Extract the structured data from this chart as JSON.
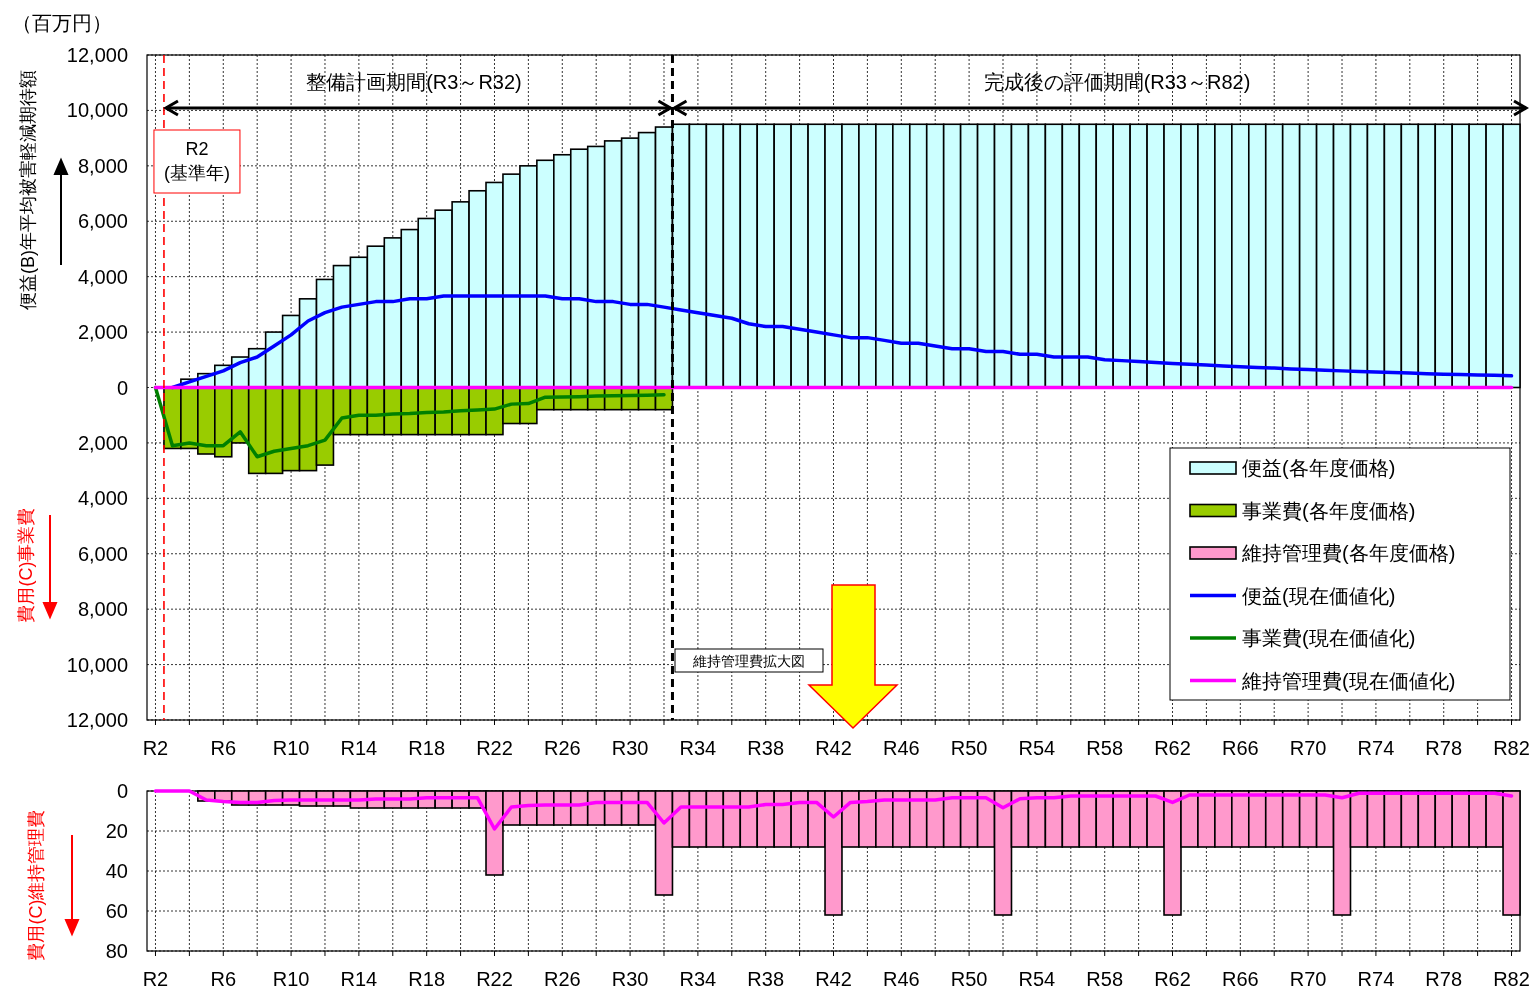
{
  "chart_data": [
    {
      "type": "bar",
      "ylabel": "便益(B)年平均被害軽減期待額",
      "annotations": [
        "（百万円）",
        "費用(C)事業費",
        "維持管理費拡大図",
        "整備計画期間(R3～R32)",
        "完成後の評価期間(R33～R82)"
      ],
      "categories": [
        "R2",
        null,
        null,
        null,
        "R6",
        null,
        null,
        null,
        "R10",
        null,
        null,
        null,
        "R14",
        null,
        null,
        null,
        "R18",
        null,
        null,
        null,
        "R22",
        null,
        null,
        null,
        "R26",
        null,
        null,
        null,
        "R30",
        null,
        null,
        null,
        "R34",
        null,
        null,
        null,
        "R38",
        null,
        null,
        null,
        "R42",
        null,
        null,
        null,
        "R46",
        null,
        null,
        null,
        "R50",
        null,
        null,
        null,
        "R54",
        null,
        null,
        null,
        "R58",
        null,
        null,
        null,
        "R62",
        null,
        null,
        null,
        "R66",
        null,
        null,
        null,
        "R70",
        null,
        null,
        null,
        "R74",
        null,
        null,
        null,
        "R78",
        null,
        null,
        null,
        "R82"
      ],
      "ylim": [
        -12000,
        12000
      ],
      "yticks": [
        {
          "value": -12000,
          "label": "12,000"
        },
        {
          "value": -10000,
          "label": "10,000"
        },
        {
          "value": -8000,
          "label": "8,000"
        },
        {
          "value": -6000,
          "label": "6,000"
        },
        {
          "value": -4000,
          "label": "4,000"
        },
        {
          "value": -2000,
          "label": "2,000"
        },
        0,
        {
          "value": 2000,
          "label": "2,000"
        },
        {
          "value": 4000,
          "label": "4,000"
        },
        {
          "value": 6000,
          "label": "6,000"
        },
        {
          "value": 8000,
          "label": "8,000"
        },
        {
          "value": 10000,
          "label": "10,000"
        },
        {
          "value": 12000,
          "label": "12,000"
        }
      ],
      "grid": true,
      "legend": "bottom right",
      "ref_lines": [
        {
          "axis": "x",
          "value": "R2",
          "label": "R2\n(基準年)",
          "color": "#ff0000",
          "line_style": "dashed"
        },
        {
          "axis": "x",
          "color": "#000000",
          "line_style": "dashed"
        }
      ],
      "series": [
        {
          "name": "便益(各年度価格)",
          "color": "#ccffff",
          "values": [
            null,
            null,
            300,
            500,
            800,
            1100,
            1400,
            2000,
            2600,
            3200,
            3900,
            4400,
            4700,
            5100,
            5400,
            5700,
            6100,
            6400,
            6700,
            7100,
            7400,
            7700,
            8000,
            8200,
            8400,
            8600,
            8700,
            8900,
            9000,
            9200,
            9400,
            9500,
            9500,
            9500,
            9500,
            9500,
            9500,
            9500,
            9500,
            9500,
            9500,
            9500,
            9500,
            9500,
            9500,
            9500,
            9500,
            9500,
            9500,
            9500,
            9500,
            9500,
            9500,
            9500,
            9500,
            9500,
            9500,
            9500,
            9500,
            9500,
            9500,
            9500,
            9500,
            9500,
            9500,
            9500,
            9500,
            9500,
            9500,
            9500,
            9500,
            9500,
            9500,
            9500,
            9500,
            9500,
            9500,
            9500,
            9500,
            9500,
            9500
          ]
        },
        {
          "name": "事業費(各年度価格)",
          "color": "#99cc00",
          "values": [
            null,
            -2200,
            -2200,
            -2400,
            -2500,
            -2000,
            -3100,
            -3100,
            -3000,
            -3000,
            -2800,
            -1700,
            -1700,
            -1700,
            -1700,
            -1700,
            -1700,
            -1700,
            -1700,
            -1700,
            -1700,
            -1300,
            -1300,
            -800,
            -800,
            -800,
            -800,
            -800,
            -800,
            -800,
            -800,
            null,
            null,
            null,
            null,
            null,
            null,
            null,
            null,
            null,
            null,
            null,
            null,
            null,
            null,
            null,
            null,
            null,
            null,
            null,
            null,
            null,
            null,
            null,
            null,
            null,
            null,
            null,
            null,
            null,
            null,
            null,
            null,
            null,
            null,
            null,
            null,
            null,
            null,
            null,
            null,
            null,
            null,
            null,
            null,
            null,
            null,
            null,
            null,
            null,
            null
          ]
        },
        {
          "name": "維持管理費(各年度価格)",
          "color": "#ff99cc",
          "values": [
            null,
            null,
            null,
            null,
            null,
            null,
            null,
            null,
            null,
            null,
            null,
            null,
            null,
            null,
            null,
            null,
            null,
            null,
            null,
            null,
            null,
            null,
            null,
            null,
            null,
            null,
            null,
            null,
            null,
            null,
            null,
            null,
            null,
            null,
            null,
            null,
            null,
            null,
            null,
            null,
            null,
            null,
            null,
            null,
            null,
            null,
            null,
            null,
            null,
            null,
            null,
            null,
            null,
            null,
            null,
            null,
            null,
            null,
            null,
            null,
            null,
            null,
            null,
            null,
            null,
            null,
            null,
            null,
            null,
            null,
            null,
            null,
            null,
            null,
            null,
            null,
            null,
            null,
            null,
            null,
            null
          ]
        },
        {
          "name": "便益(現在価値化)",
          "type": "line",
          "color": "#0000ff",
          "values": [
            null,
            0,
            200,
            400,
            600,
            900,
            1100,
            1500,
            1900,
            2400,
            2700,
            2900,
            3000,
            3100,
            3100,
            3200,
            3200,
            3300,
            3300,
            3300,
            3300,
            3300,
            3300,
            3300,
            3200,
            3200,
            3100,
            3100,
            3000,
            3000,
            2900,
            2800,
            2700,
            2600,
            2500,
            2300,
            2200,
            2200,
            2100,
            2000,
            1900,
            1800,
            1800,
            1700,
            1600,
            1600,
            1500,
            1400,
            1400,
            1300,
            1300,
            1200,
            1200,
            1100,
            1100,
            1100,
            1000,
            970,
            940,
            900,
            870,
            840,
            810,
            780,
            750,
            720,
            700,
            670,
            650,
            620,
            600,
            580,
            560,
            540,
            520,
            500,
            480,
            470,
            450,
            440,
            420
          ]
        },
        {
          "name": "事業費(現在価値化)",
          "type": "line",
          "color": "#008000",
          "values": [
            0,
            -2100,
            -2000,
            -2100,
            -2100,
            -1600,
            -2500,
            -2300,
            -2200,
            -2100,
            -1900,
            -1100,
            -1000,
            -1000,
            -960,
            -940,
            -900,
            -880,
            -840,
            -810,
            -780,
            -600,
            -580,
            -350,
            -340,
            -330,
            -310,
            -300,
            -290,
            -280,
            -260,
            null,
            null,
            null,
            null,
            null,
            null,
            null,
            null,
            null,
            null,
            null,
            null,
            null,
            null,
            null,
            null,
            null,
            null,
            null,
            null,
            null,
            null,
            null,
            null,
            null,
            null,
            null,
            null,
            null,
            null,
            null,
            null,
            null,
            null,
            null,
            null,
            null,
            null,
            null,
            null,
            null,
            null,
            null,
            null,
            null,
            null,
            null,
            null,
            null,
            null
          ]
        },
        {
          "name": "維持管理費(現在価値化)",
          "type": "line",
          "color": "#ff00ff",
          "values": [
            0,
            0,
            0,
            0,
            0,
            0,
            0,
            0,
            0,
            0,
            0,
            0,
            0,
            0,
            0,
            0,
            0,
            0,
            0,
            0,
            0,
            0,
            0,
            0,
            0,
            0,
            0,
            0,
            0,
            0,
            0,
            0,
            0,
            0,
            0,
            0,
            0,
            0,
            0,
            0,
            0,
            0,
            0,
            0,
            0,
            0,
            0,
            0,
            0,
            0,
            0,
            0,
            0,
            0,
            0,
            0,
            0,
            0,
            0,
            0,
            0,
            0,
            0,
            0,
            0,
            0,
            0,
            0,
            0,
            0,
            0,
            0,
            0,
            0,
            0,
            0,
            0,
            0,
            0,
            0,
            0
          ]
        }
      ]
    },
    {
      "type": "bar",
      "ylabel": "費用(C)維持管理費",
      "categories": [
        "R2",
        null,
        null,
        null,
        "R6",
        null,
        null,
        null,
        "R10",
        null,
        null,
        null,
        "R14",
        null,
        null,
        null,
        "R18",
        null,
        null,
        null,
        "R22",
        null,
        null,
        null,
        "R26",
        null,
        null,
        null,
        "R30",
        null,
        null,
        null,
        "R34",
        null,
        null,
        null,
        "R38",
        null,
        null,
        null,
        "R42",
        null,
        null,
        null,
        "R46",
        null,
        null,
        null,
        "R50",
        null,
        null,
        null,
        "R54",
        null,
        null,
        null,
        "R58",
        null,
        null,
        null,
        "R62",
        null,
        null,
        null,
        "R66",
        null,
        null,
        null,
        "R70",
        null,
        null,
        null,
        "R74",
        null,
        null,
        null,
        "R78",
        null,
        null,
        null,
        "R82"
      ],
      "ylim": [
        80,
        0
      ],
      "yticks": [
        0,
        20,
        40,
        60,
        80
      ],
      "grid": true,
      "series": [
        {
          "color": "#ff99cc",
          "values": [
            null,
            null,
            null,
            5,
            5,
            7,
            7,
            7,
            7,
            7.5,
            7.5,
            7.5,
            8.5,
            8.5,
            8.5,
            8.5,
            8.5,
            8.5,
            8.5,
            8.5,
            42,
            17,
            17,
            17,
            17,
            17,
            17,
            17,
            17,
            17,
            52,
            28,
            28,
            28,
            28,
            28,
            28,
            28,
            28,
            28,
            62,
            28,
            28,
            28,
            28,
            28,
            28,
            28,
            28,
            28,
            62,
            28,
            28,
            28,
            28,
            28,
            28,
            28,
            28,
            28,
            62,
            28,
            28,
            28,
            28,
            28,
            28,
            28,
            28,
            28,
            62,
            28,
            28,
            28,
            28,
            28,
            28,
            28,
            28,
            28,
            62
          ]
        },
        {
          "type": "line",
          "color": "#ff00ff",
          "values": [
            0,
            0,
            0,
            4.5,
            5.2,
            5.7,
            5.7,
            4.8,
            4.5,
            4.5,
            4.5,
            4.5,
            4.5,
            4,
            4,
            4,
            3.4,
            3.4,
            3.4,
            3.4,
            19,
            8,
            7.3,
            7,
            7,
            7,
            5.7,
            5.7,
            5.7,
            5.7,
            16,
            8,
            8,
            8,
            8,
            8,
            6.8,
            6.8,
            5.7,
            5.7,
            13,
            5.7,
            5.2,
            4.5,
            4.5,
            4.5,
            4.5,
            3.4,
            3.4,
            3.4,
            8.4,
            3.9,
            3.4,
            3.4,
            2.5,
            2.5,
            2.5,
            2.5,
            2.5,
            2.5,
            5.7,
            2,
            2,
            2,
            2,
            2,
            2,
            2,
            2,
            2,
            3.4,
            1.1,
            1.1,
            1.1,
            1.1,
            1.1,
            1.1,
            1.1,
            1.1,
            1.1,
            2.5
          ]
        }
      ]
    }
  ]
}
